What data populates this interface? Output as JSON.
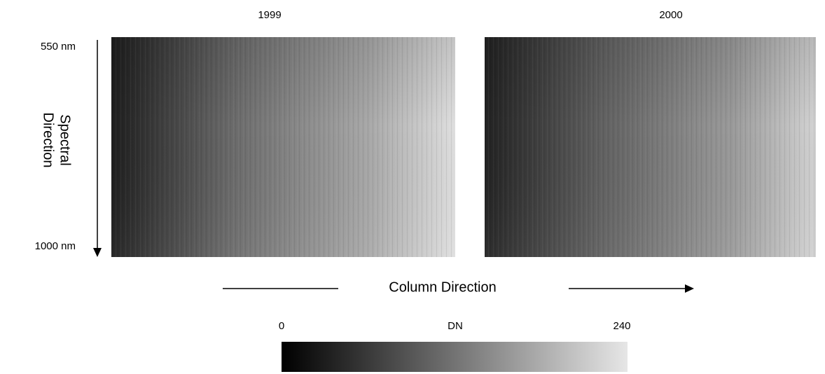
{
  "panels": [
    {
      "title": "1999"
    },
    {
      "title": "2000"
    }
  ],
  "spectral_axis": {
    "top_label": "550 nm",
    "bottom_label": "1000 nm",
    "title_lines": [
      "Spectral",
      "Direction"
    ]
  },
  "column_axis": {
    "title": "Column Direction"
  },
  "colorbar": {
    "min": 0,
    "label": "DN",
    "max": 240
  }
}
